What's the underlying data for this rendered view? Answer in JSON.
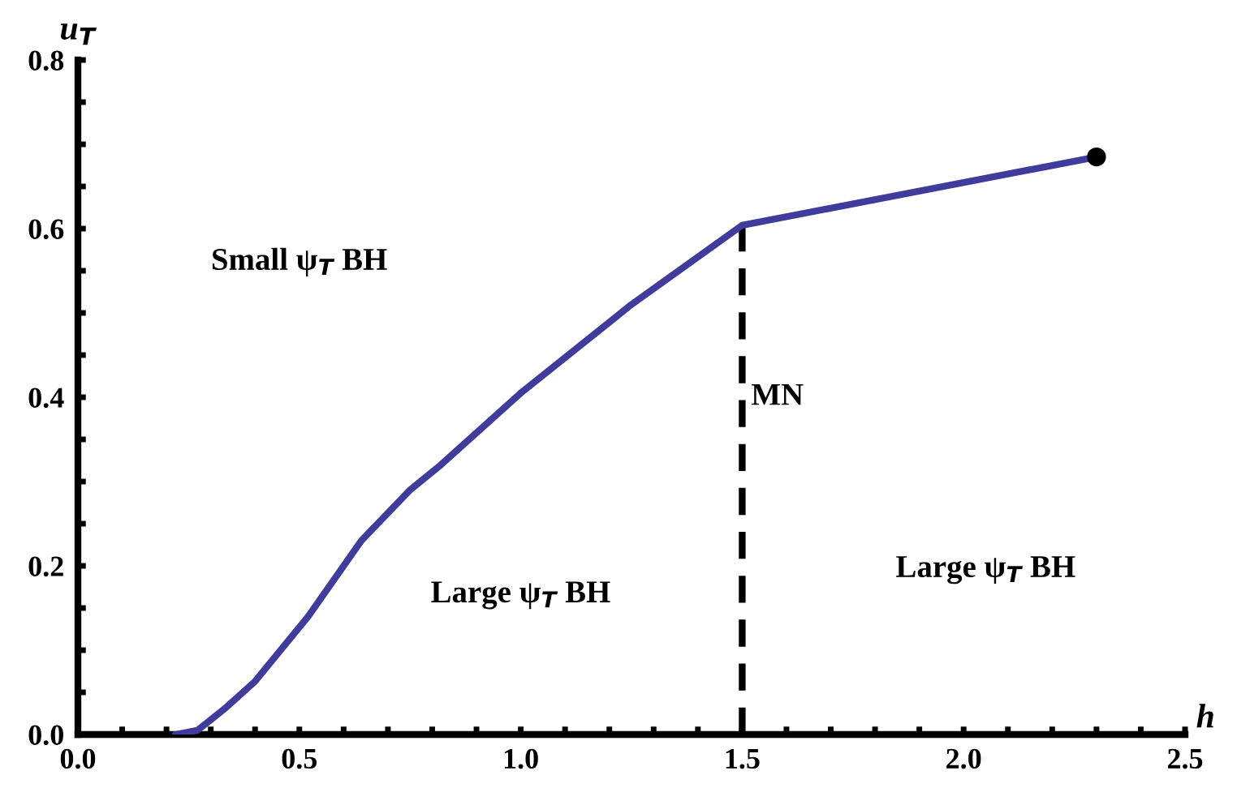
{
  "chart_data": {
    "type": "line",
    "xlabel": "h",
    "ylabel": "u$_{T}$",
    "series": [
      {
        "color": "#3f3c9c",
        "x": [
          0.22,
          0.27,
          0.33,
          0.4,
          0.52,
          0.64,
          0.75,
          0.82,
          1.0,
          1.25,
          1.5,
          2.3
        ],
        "values": [
          0.0,
          0.005,
          0.03,
          0.063,
          0.14,
          0.23,
          0.29,
          0.32,
          0.405,
          0.51,
          0.604,
          0.685
        ]
      },
      {
        "type": "scatter",
        "color": "#000000",
        "marker": "circle",
        "x": [
          2.3
        ],
        "values": [
          0.685
        ]
      }
    ],
    "xlim": [
      0,
      2.5
    ],
    "ylim": [
      0,
      0.8
    ],
    "xticks": [
      {
        "value": 0,
        "label": "0.0"
      },
      {
        "value": 0.1,
        "label": null
      },
      {
        "value": 0.2,
        "label": null
      },
      {
        "value": 0.3,
        "label": null
      },
      {
        "value": 0.4,
        "label": null
      },
      0.5,
      {
        "value": 0.6,
        "label": null
      },
      {
        "value": 0.7,
        "label": null
      },
      {
        "value": 0.8,
        "label": null
      },
      {
        "value": 0.9,
        "label": null
      },
      {
        "value": 1,
        "label": "1.0"
      },
      {
        "value": 1.1,
        "label": null
      },
      {
        "value": 1.2,
        "label": null
      },
      {
        "value": 1.3,
        "label": null
      },
      {
        "value": 1.4,
        "label": null
      },
      1.5,
      {
        "value": 1.6,
        "label": null
      },
      {
        "value": 1.7,
        "label": null
      },
      {
        "value": 1.8,
        "label": null
      },
      {
        "value": 1.9,
        "label": null
      },
      {
        "value": 2,
        "label": "2.0"
      },
      {
        "value": 2.1,
        "label": null
      },
      {
        "value": 2.2,
        "label": null
      },
      {
        "value": 2.3,
        "label": null
      },
      {
        "value": 2.4,
        "label": null
      },
      2.5
    ],
    "yticks": [
      {
        "value": 0,
        "label": "0.0"
      },
      {
        "value": 0.05,
        "label": null
      },
      {
        "value": 0.1,
        "label": null
      },
      {
        "value": 0.15,
        "label": null
      },
      0.2,
      {
        "value": 0.25,
        "label": null
      },
      {
        "value": 0.3,
        "label": null
      },
      {
        "value": 0.35,
        "label": null
      },
      0.4,
      {
        "value": 0.45,
        "label": null
      },
      {
        "value": 0.5,
        "label": null
      },
      {
        "value": 0.55,
        "label": null
      },
      0.6,
      {
        "value": 0.65,
        "label": null
      },
      {
        "value": 0.7,
        "label": null
      },
      {
        "value": 0.75,
        "label": null
      },
      0.8
    ],
    "ref_lines": [
      {
        "axis": "x",
        "value": 1.5,
        "label": "MN",
        "color": "#000000",
        "line_style": "dashed"
      }
    ],
    "annotations": [
      "Small ψ$_{T}$ BH",
      "Large ψ$_{T}$ BH",
      "Large ψ$_{T}$ BH"
    ],
    "grid": false,
    "legend": false
  }
}
